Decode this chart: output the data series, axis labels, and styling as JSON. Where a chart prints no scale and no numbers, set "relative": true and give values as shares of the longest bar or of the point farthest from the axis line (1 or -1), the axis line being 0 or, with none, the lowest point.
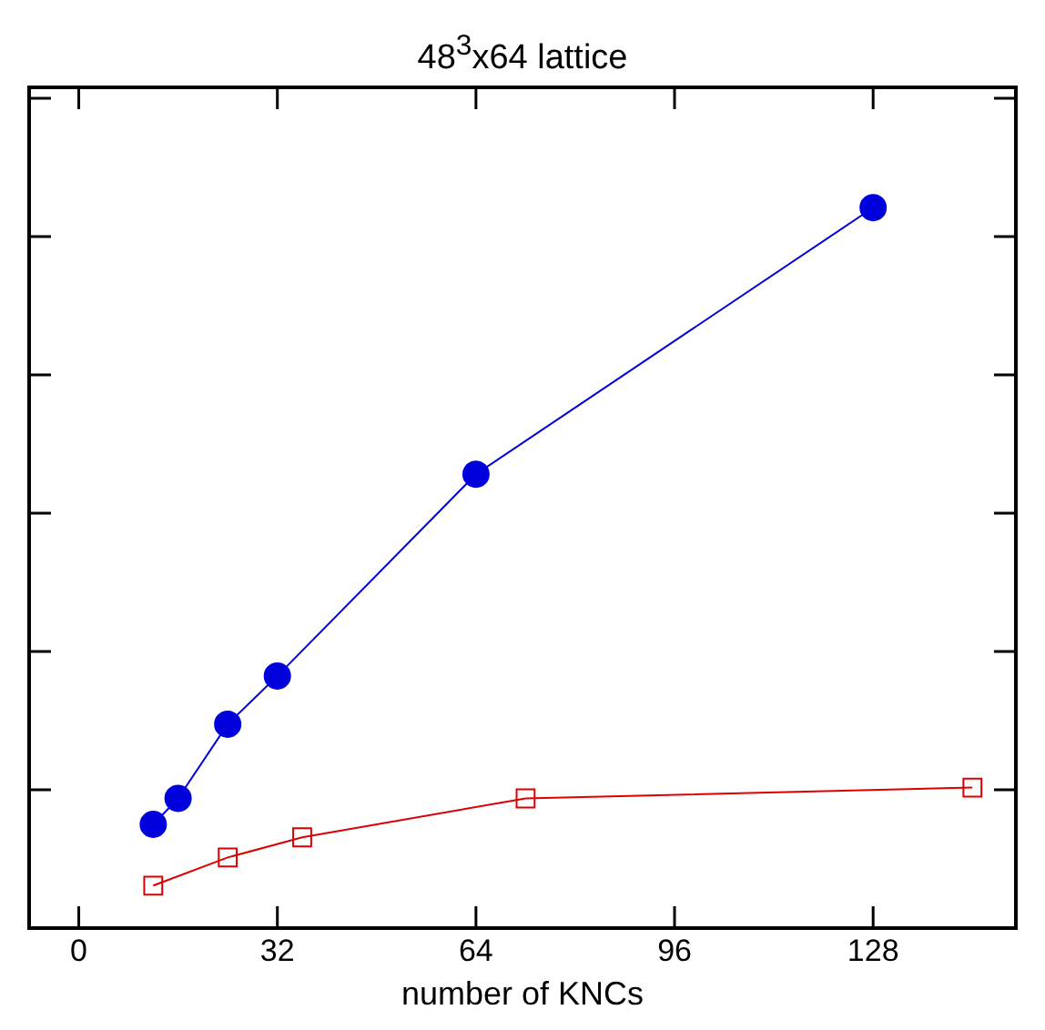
{
  "chart_data": {
    "type": "line",
    "title": "48$^{3}$x64 lattice",
    "xlabel": "number of KNCs",
    "relative": true,
    "xlim": [
      -8,
      151
    ],
    "xticks": [
      0,
      32,
      64,
      96,
      128
    ],
    "grid": false,
    "legend": false,
    "tick_labels": "x",
    "series": [
      {
        "color": "#0000dd",
        "marker": "circle",
        "x": [
          12,
          16,
          24,
          32,
          64,
          128
        ],
        "values": [
          0.144,
          0.18,
          0.283,
          0.35,
          0.63,
          1
        ]
      },
      {
        "color": "#dd0000",
        "marker": "square",
        "x": [
          12,
          24,
          36,
          72,
          144
        ],
        "values": [
          0.059,
          0.098,
          0.126,
          0.18,
          0.195
        ]
      }
    ]
  }
}
